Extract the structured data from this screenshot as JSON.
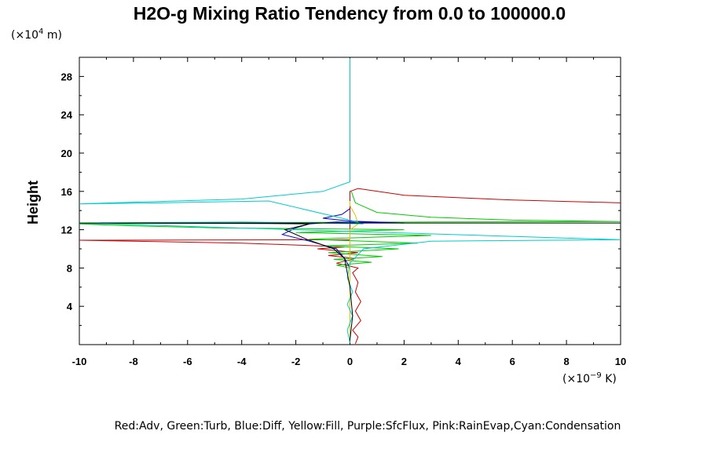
{
  "chart_data": {
    "type": "line",
    "title": "H2O-g Mixing Ratio Tendency from 0.0 to 100000.0",
    "ylabel": "Height",
    "xlabel": "",
    "y_unit_prefix": "(×10",
    "y_unit_exp": "4",
    "y_unit_suffix": " m)",
    "x_unit_prefix": "(×10",
    "x_unit_exp": "−9",
    "x_unit_suffix": " K)",
    "xlim": [
      -10,
      10
    ],
    "ylim": [
      0,
      30
    ],
    "x_ticks": [
      "-10",
      "-8",
      "-6",
      "-4",
      "-2",
      "0",
      "2",
      "4",
      "6",
      "8",
      "10"
    ],
    "y_ticks": [
      "4",
      "8",
      "12",
      "16",
      "20",
      "24",
      "28"
    ],
    "legend_text": "Red:Adv, Green:Turb, Blue:Diff, Yellow:Fill, Purple:SfcFlux, Pink:RainEvap,Cyan:Condensation",
    "series": [
      {
        "color": "#cc0000",
        "points": [
          [
            0.2,
            0.1
          ],
          [
            0.3,
            0.8
          ],
          [
            0.1,
            1.5
          ],
          [
            0.4,
            2.5
          ],
          [
            0.2,
            3.5
          ],
          [
            0.4,
            4.5
          ],
          [
            0.2,
            5.5
          ],
          [
            0.3,
            6.5
          ],
          [
            0.1,
            7.5
          ],
          [
            0.3,
            8.0
          ],
          [
            -0.5,
            8.5
          ],
          [
            0.2,
            9.0
          ],
          [
            -0.8,
            9.3
          ],
          [
            0.3,
            9.6
          ],
          [
            -1.2,
            10.0
          ],
          [
            -0.2,
            10.2
          ],
          [
            -2.0,
            10.4
          ],
          [
            -4.0,
            10.6
          ],
          [
            -8.0,
            10.8
          ],
          [
            -10,
            10.9
          ],
          [
            -10,
            10.9
          ],
          [
            0,
            10.95
          ],
          [
            0,
            16.0
          ],
          [
            0.3,
            16.3
          ],
          [
            2.0,
            15.6
          ],
          [
            6.0,
            15.1
          ],
          [
            10.0,
            14.8
          ]
        ]
      },
      {
        "color": "#00cc00",
        "points": [
          [
            0.0,
            0.5
          ],
          [
            0.0,
            8.0
          ],
          [
            -0.5,
            8.3
          ],
          [
            0.8,
            8.6
          ],
          [
            -0.6,
            8.9
          ],
          [
            1.2,
            9.2
          ],
          [
            -0.8,
            9.6
          ],
          [
            1.8,
            10.0
          ],
          [
            -1.0,
            10.3
          ],
          [
            2.5,
            10.6
          ],
          [
            -1.5,
            11.0
          ],
          [
            3.0,
            11.4
          ],
          [
            -2.0,
            11.7
          ],
          [
            2.0,
            12.0
          ],
          [
            -5.0,
            12.2
          ],
          [
            -8.0,
            12.4
          ],
          [
            -10,
            12.6
          ],
          [
            -10,
            12.6
          ],
          [
            -3.0,
            12.75
          ],
          [
            3.0,
            12.8
          ],
          [
            10.0,
            12.85
          ],
          [
            10.0,
            12.85
          ],
          [
            6.0,
            13.0
          ],
          [
            3.0,
            13.3
          ],
          [
            1.0,
            13.8
          ],
          [
            0.2,
            14.8
          ],
          [
            0.05,
            16.0
          ]
        ]
      },
      {
        "color": "#0000cc",
        "points": [
          [
            0.0,
            0.5
          ],
          [
            0.0,
            8.0
          ],
          [
            -0.2,
            9.0
          ],
          [
            -0.5,
            10.0
          ],
          [
            -1.5,
            10.8
          ],
          [
            -2.5,
            11.5
          ],
          [
            -2.0,
            12.2
          ],
          [
            -1.5,
            12.6
          ],
          [
            -0.5,
            12.8
          ],
          [
            1.0,
            12.75
          ],
          [
            2.0,
            12.7
          ],
          [
            0.0,
            12.9
          ],
          [
            -1.0,
            13.2
          ],
          [
            -0.3,
            13.6
          ],
          [
            0.0,
            14.2
          ]
        ]
      },
      {
        "color": "#e0c000",
        "points": [
          [
            0.0,
            0.5
          ],
          [
            0.0,
            12.0
          ],
          [
            0.3,
            12.6
          ],
          [
            0.2,
            13.5
          ],
          [
            0.0,
            14.5
          ],
          [
            0.0,
            15.0
          ]
        ]
      },
      {
        "color": "#00cccc",
        "points": [
          [
            0.0,
            0.2
          ],
          [
            -0.1,
            1.5
          ],
          [
            0.1,
            3.0
          ],
          [
            -0.1,
            4.2
          ],
          [
            0.1,
            5.5
          ],
          [
            -0.1,
            7.0
          ],
          [
            0.0,
            8.5
          ],
          [
            0.5,
            10.0
          ],
          [
            3.0,
            10.8
          ],
          [
            10.0,
            10.95
          ],
          [
            10.0,
            10.95
          ],
          [
            -10.0,
            12.7
          ],
          [
            -10.0,
            12.7
          ],
          [
            -4.0,
            12.8
          ],
          [
            -1.0,
            12.7
          ],
          [
            0.5,
            12.6
          ],
          [
            0.0,
            13.0
          ],
          [
            -3.0,
            15.0
          ],
          [
            -7.0,
            14.8
          ],
          [
            -10.0,
            14.7
          ],
          [
            -10.0,
            14.7
          ],
          [
            -4.0,
            15.2
          ],
          [
            -1.0,
            16.0
          ],
          [
            0.0,
            17.0
          ],
          [
            0.0,
            29.9
          ]
        ]
      },
      {
        "color": "#000000",
        "points": [
          [
            0.0,
            0.5
          ],
          [
            0.1,
            3.0
          ],
          [
            0.0,
            6.0
          ],
          [
            -0.2,
            9.0
          ],
          [
            -0.6,
            10.0
          ],
          [
            -1.6,
            11.0
          ],
          [
            -2.4,
            12.0
          ],
          [
            -1.5,
            12.6
          ],
          [
            -3.0,
            12.65
          ],
          [
            -10.0,
            12.7
          ],
          [
            -10.0,
            12.7
          ],
          [
            10.0,
            12.7
          ]
        ]
      }
    ]
  }
}
